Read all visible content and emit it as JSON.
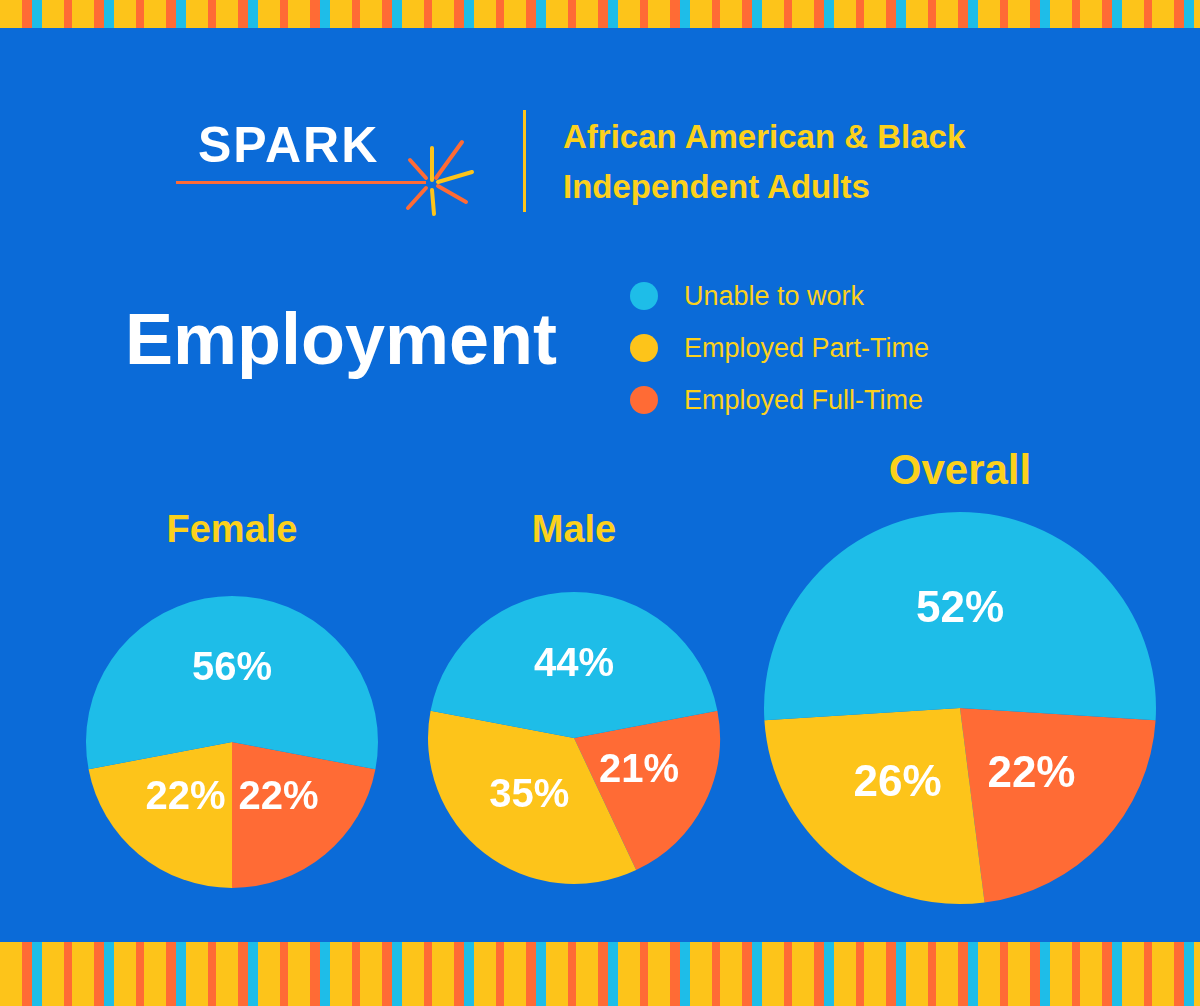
{
  "brand": "SPARK",
  "subtitle": [
    "African American & Black",
    "Independent Adults"
  ],
  "heading": "Employment",
  "legend": "top-right",
  "chart_data": [
    {
      "type": "pie",
      "title": "Female",
      "categories": [
        "Unable to work",
        "Employed Part-Time",
        "Employed Full-Time"
      ],
      "values": [
        56,
        22,
        22
      ],
      "value_labels": [
        "56%",
        "22%",
        "22%"
      ],
      "colors": [
        "#1ebde8",
        "#fdc41a",
        "#ff6b35"
      ],
      "data_labels": true
    },
    {
      "type": "pie",
      "title": "Male",
      "categories": [
        "Unable to work",
        "Employed Part-Time",
        "Employed Full-Time"
      ],
      "values": [
        44,
        35,
        21
      ],
      "value_labels": [
        "44%",
        "35%",
        "21%"
      ],
      "colors": [
        "#1ebde8",
        "#fdc41a",
        "#ff6b35"
      ],
      "data_labels": true
    },
    {
      "type": "pie",
      "title": "Overall",
      "categories": [
        "Unable to work",
        "Employed Part-Time",
        "Employed Full-Time"
      ],
      "values": [
        52,
        26,
        22
      ],
      "value_labels": [
        "52%",
        "26%",
        "22%"
      ],
      "colors": [
        "#1ebde8",
        "#fdc41a",
        "#ff6b35"
      ],
      "data_labels": true
    }
  ]
}
